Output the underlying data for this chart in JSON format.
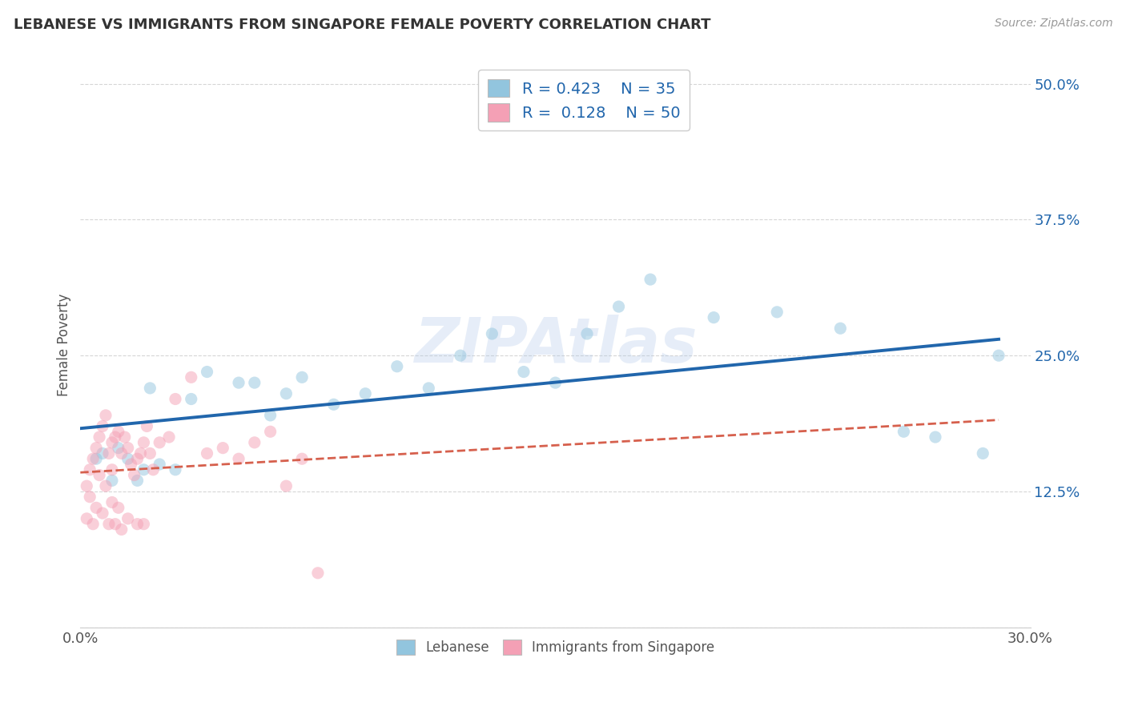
{
  "title": "LEBANESE VS IMMIGRANTS FROM SINGAPORE FEMALE POVERTY CORRELATION CHART",
  "source_text": "Source: ZipAtlas.com",
  "ylabel": "Female Poverty",
  "xlim": [
    0.0,
    0.3
  ],
  "ylim": [
    0.0,
    0.52
  ],
  "xticks": [
    0.0,
    0.05,
    0.1,
    0.15,
    0.2,
    0.25,
    0.3
  ],
  "xticklabels": [
    "0.0%",
    "",
    "",
    "",
    "",
    "",
    "30.0%"
  ],
  "ytick_positions": [
    0.0,
    0.125,
    0.25,
    0.375,
    0.5
  ],
  "yticklabels": [
    "",
    "12.5%",
    "25.0%",
    "37.5%",
    "50.0%"
  ],
  "grid_color": "#cccccc",
  "background_color": "#ffffff",
  "watermark_text": "ZIPAtlas",
  "watermark_color": "#aec6e8",
  "legend_R1": "0.423",
  "legend_N1": "35",
  "legend_R2": "0.128",
  "legend_N2": "50",
  "blue_color": "#92c5de",
  "pink_color": "#f4a0b5",
  "blue_line_color": "#2166ac",
  "pink_line_color": "#d6604d",
  "marker_size": 120,
  "marker_alpha": 0.5,
  "lebanese_x": [
    0.005,
    0.007,
    0.01,
    0.012,
    0.015,
    0.018,
    0.02,
    0.022,
    0.025,
    0.03,
    0.035,
    0.04,
    0.05,
    0.055,
    0.06,
    0.065,
    0.07,
    0.08,
    0.09,
    0.1,
    0.11,
    0.12,
    0.13,
    0.14,
    0.15,
    0.16,
    0.17,
    0.18,
    0.2,
    0.22,
    0.24,
    0.26,
    0.27,
    0.285,
    0.29
  ],
  "lebanese_y": [
    0.155,
    0.16,
    0.135,
    0.165,
    0.155,
    0.135,
    0.145,
    0.22,
    0.15,
    0.145,
    0.21,
    0.235,
    0.225,
    0.225,
    0.195,
    0.215,
    0.23,
    0.205,
    0.215,
    0.24,
    0.22,
    0.25,
    0.27,
    0.235,
    0.225,
    0.27,
    0.295,
    0.32,
    0.285,
    0.29,
    0.275,
    0.18,
    0.175,
    0.16,
    0.25
  ],
  "singapore_x": [
    0.002,
    0.002,
    0.003,
    0.003,
    0.004,
    0.004,
    0.005,
    0.005,
    0.006,
    0.006,
    0.007,
    0.007,
    0.008,
    0.008,
    0.009,
    0.009,
    0.01,
    0.01,
    0.01,
    0.011,
    0.011,
    0.012,
    0.012,
    0.013,
    0.013,
    0.014,
    0.015,
    0.015,
    0.016,
    0.017,
    0.018,
    0.018,
    0.019,
    0.02,
    0.02,
    0.021,
    0.022,
    0.023,
    0.025,
    0.028,
    0.03,
    0.035,
    0.04,
    0.045,
    0.05,
    0.055,
    0.06,
    0.065,
    0.07,
    0.075
  ],
  "singapore_y": [
    0.13,
    0.1,
    0.145,
    0.12,
    0.155,
    0.095,
    0.165,
    0.11,
    0.175,
    0.14,
    0.185,
    0.105,
    0.195,
    0.13,
    0.16,
    0.095,
    0.17,
    0.145,
    0.115,
    0.175,
    0.095,
    0.18,
    0.11,
    0.16,
    0.09,
    0.175,
    0.165,
    0.1,
    0.15,
    0.14,
    0.155,
    0.095,
    0.16,
    0.17,
    0.095,
    0.185,
    0.16,
    0.145,
    0.17,
    0.175,
    0.21,
    0.23,
    0.16,
    0.165,
    0.155,
    0.17,
    0.18,
    0.13,
    0.155,
    0.05
  ]
}
